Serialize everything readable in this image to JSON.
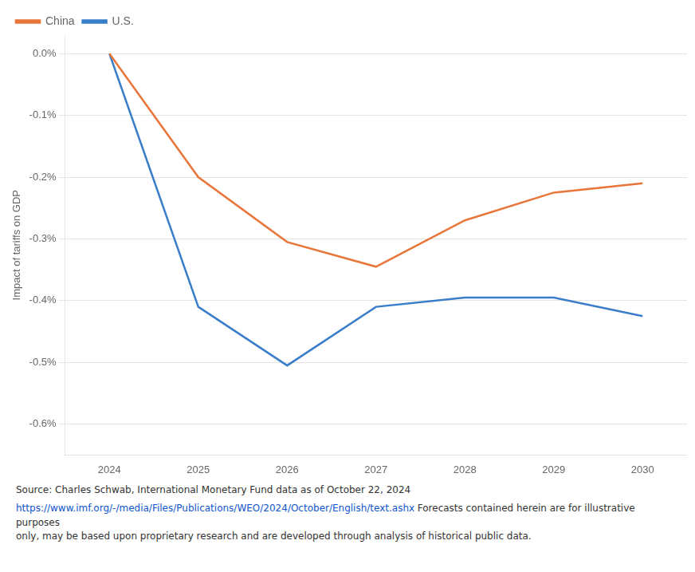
{
  "chart_data": {
    "type": "line",
    "x": [
      2024,
      2025,
      2026,
      2027,
      2028,
      2029,
      2030
    ],
    "series": [
      {
        "name": "China",
        "color": "#E8763A",
        "values": [
          0.0,
          -0.2,
          -0.305,
          -0.345,
          -0.27,
          -0.225,
          -0.21
        ]
      },
      {
        "name": "U.S.",
        "color": "#3A7DC9",
        "values": [
          0.0,
          -0.41,
          -0.505,
          -0.41,
          -0.395,
          -0.395,
          -0.425
        ]
      }
    ],
    "y_label": "Impact of tariffs on GDP",
    "xlim": [
      2023.5,
      2030.5
    ],
    "xticks": [
      2024,
      2025,
      2026,
      2027,
      2028,
      2029,
      2030
    ],
    "ylim": [
      -0.65,
      0.03
    ],
    "yticks": [
      {
        "value": 0.0,
        "label": "0.0%"
      },
      {
        "value": -0.1,
        "label": "-0.1%"
      },
      {
        "value": -0.2,
        "label": "-0.2%"
      },
      {
        "value": -0.3,
        "label": "-0.3%"
      },
      {
        "value": -0.4,
        "label": "-0.4%"
      },
      {
        "value": -0.5,
        "label": "-0.5%"
      },
      {
        "value": -0.6,
        "label": "-0.6%"
      }
    ],
    "grid": "y",
    "legend": "top left",
    "annotations": [
      {
        "text": "Source: Charles Schwab, International Monetary Fund data as of October 22, 2024"
      },
      {
        "text": "https://www.imf.org/-/media/Files/Publications/WEO/2024/October/English/text.ashx",
        "color": "#1155CC"
      },
      {
        "text": "Forecasts contained herein are for illustrative purposes"
      },
      {
        "text": "only, may be based upon proprietary research and are developed through analysis of historical public data."
      }
    ]
  }
}
